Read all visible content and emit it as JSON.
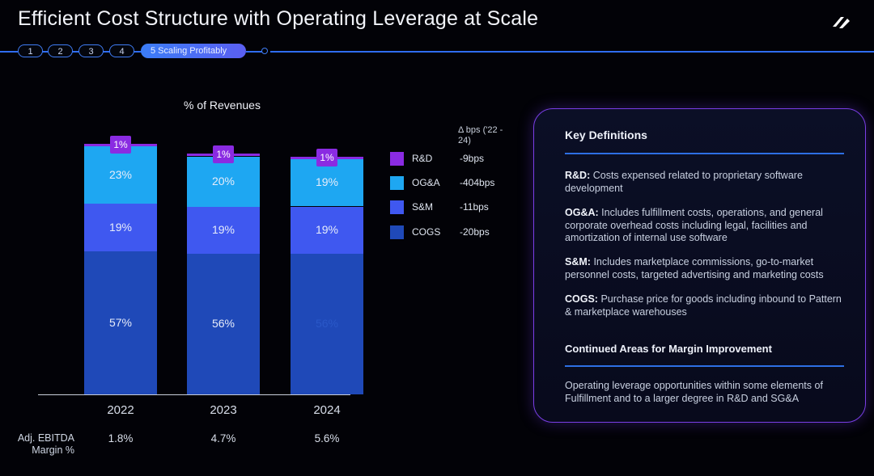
{
  "page": {
    "title": "Efficient Cost Structure with Operating Leverage at Scale"
  },
  "nav": {
    "steps": [
      "1",
      "2",
      "3",
      "4"
    ],
    "active_step": "5 Scaling Profitably"
  },
  "colors": {
    "rd": "#8a2be2",
    "oga": "#1ea7f2",
    "sm": "#3f58f0",
    "cogs": "#1f49b8",
    "accent": "#2f6cf0",
    "panel_border": "#7a3ee6"
  },
  "chart_data": {
    "type": "bar",
    "stacked": true,
    "title": "% of Revenues",
    "categories": [
      "2022",
      "2023",
      "2024"
    ],
    "series": [
      {
        "name": "COGS",
        "values": [
          57,
          56,
          56
        ],
        "labels": [
          "57%",
          "56%",
          "56%"
        ],
        "bps_change": "-20bps"
      },
      {
        "name": "S&M",
        "values": [
          19,
          19,
          19
        ],
        "labels": [
          "19%",
          "19%",
          "19%"
        ],
        "bps_change": "-11bps"
      },
      {
        "name": "OG&A",
        "values": [
          23,
          20,
          19
        ],
        "labels": [
          "23%",
          "20%",
          "19%"
        ],
        "bps_change": "-404bps"
      },
      {
        "name": "R&D",
        "values": [
          1,
          1,
          1
        ],
        "labels": [
          "1%",
          "1%",
          "1%"
        ],
        "bps_change": "-9bps"
      }
    ],
    "ylim": [
      0,
      100
    ],
    "bps_header": "Δ bps ('22 - 24)",
    "ebitda": {
      "label": "Adj. EBITDA Margin %",
      "values": [
        "1.8%",
        "4.7%",
        "5.6%"
      ]
    }
  },
  "legend": [
    {
      "name": "R&D",
      "bps": "-9bps"
    },
    {
      "name": "OG&A",
      "bps": "-404bps"
    },
    {
      "name": "S&M",
      "bps": "-11bps"
    },
    {
      "name": "COGS",
      "bps": "-20bps"
    }
  ],
  "panel": {
    "heading": "Key Definitions",
    "definitions": [
      {
        "term": "R&D:",
        "text": "Costs expensed related to proprietary software development"
      },
      {
        "term": "OG&A:",
        "text": "Includes fulfillment costs, operations, and general corporate overhead costs including legal, facilities and amortization of internal use software"
      },
      {
        "term": "S&M:",
        "text": "Includes marketplace commissions, go-to-market personnel costs, targeted advertising and marketing costs"
      },
      {
        "term": "COGS:",
        "text": "Purchase price for goods including inbound to Pattern & marketplace warehouses"
      }
    ],
    "improvement_heading": "Continued Areas for Margin Improvement",
    "improvement_text": "Operating leverage opportunities within some elements of Fulfillment and to a larger degree in R&D and SG&A"
  }
}
